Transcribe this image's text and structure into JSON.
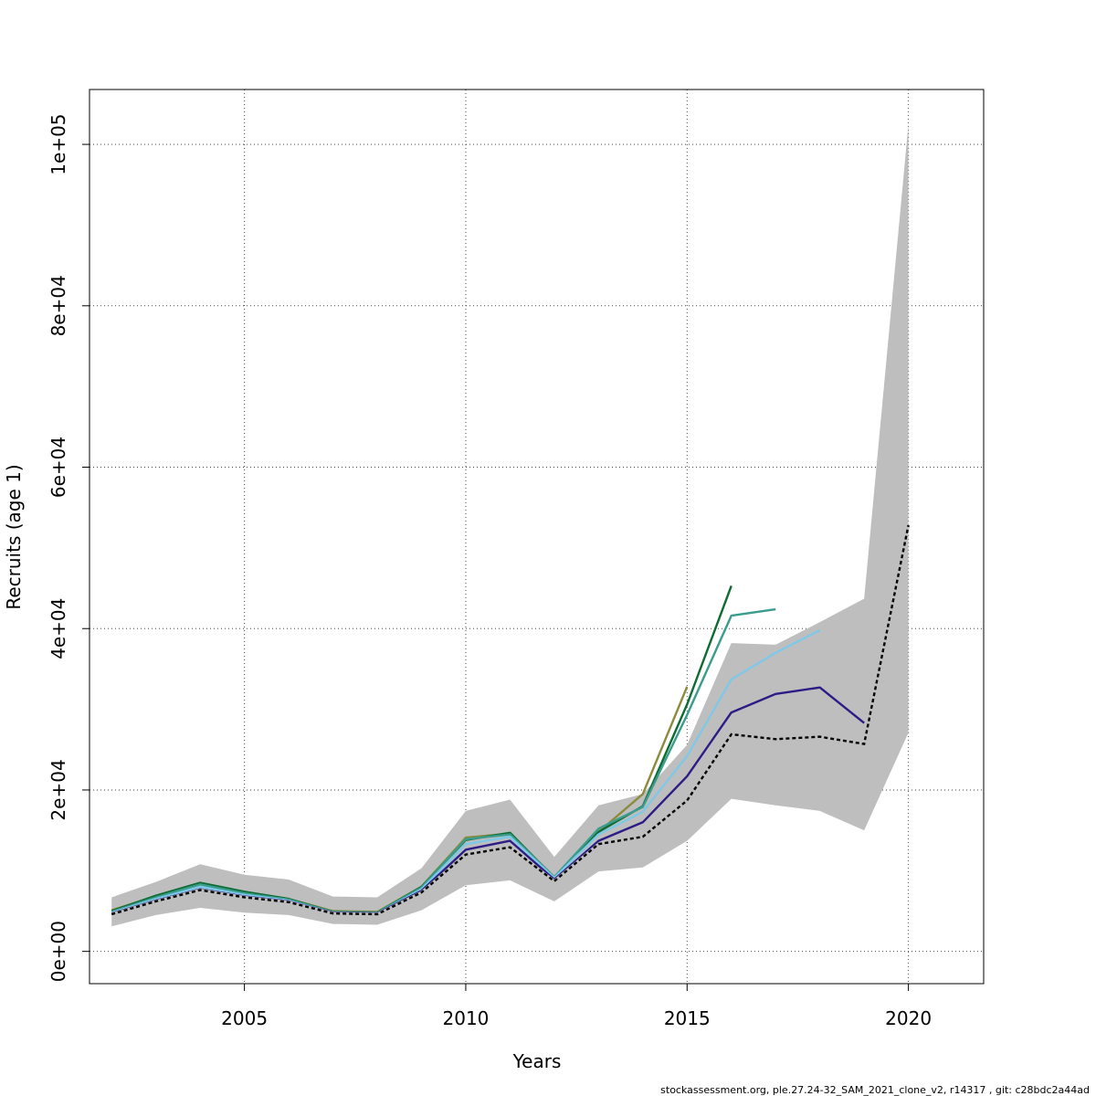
{
  "chart_data": {
    "type": "line",
    "title": "",
    "xlabel": "Years",
    "ylabel": "Recruits (age 1)",
    "xlim": [
      2001.5,
      2021.7
    ],
    "ylim": [
      -4000,
      106800
    ],
    "x_ticks": [
      {
        "value": 2005,
        "label": "2005"
      },
      {
        "value": 2010,
        "label": "2010"
      },
      {
        "value": 2015,
        "label": "2015"
      },
      {
        "value": 2020,
        "label": "2020"
      }
    ],
    "y_ticks": [
      {
        "value": 0,
        "label": "0e+00"
      },
      {
        "value": 20000,
        "label": "2e+04"
      },
      {
        "value": 40000,
        "label": "4e+04"
      },
      {
        "value": 60000,
        "label": "6e+04"
      },
      {
        "value": 80000,
        "label": "8e+04"
      },
      {
        "value": 100000,
        "label": "1e+05"
      }
    ],
    "grid": true,
    "confidence_band": {
      "color": "#bebebe",
      "x": [
        2002,
        2003,
        2004,
        2005,
        2006,
        2007,
        2008,
        2009,
        2010,
        2011,
        2012,
        2013,
        2014,
        2015,
        2016,
        2017,
        2018,
        2019,
        2020
      ],
      "upper": [
        6700,
        8600,
        10800,
        9500,
        8900,
        6800,
        6700,
        10300,
        17400,
        18800,
        11700,
        18100,
        19500,
        25600,
        38200,
        38000,
        40800,
        43700,
        102500
      ],
      "lower": [
        3100,
        4500,
        5400,
        4800,
        4500,
        3400,
        3300,
        5100,
        8200,
        8800,
        6200,
        9900,
        10400,
        13700,
        18900,
        18100,
        17400,
        15000,
        27100
      ]
    },
    "series": [
      {
        "color": "#8b8b3c",
        "dashed": false,
        "x": [
          2002,
          2003,
          2004,
          2005,
          2006,
          2007,
          2008,
          2009,
          2010,
          2011,
          2012,
          2013,
          2014,
          2015
        ],
        "values": [
          5100,
          6800,
          8400,
          7300,
          6500,
          5000,
          4900,
          8000,
          14100,
          14600,
          9200,
          14800,
          19500,
          32800
        ]
      },
      {
        "color": "#0d6b33",
        "dashed": false,
        "x": [
          2002,
          2003,
          2004,
          2005,
          2006,
          2007,
          2008,
          2009,
          2010,
          2011,
          2012,
          2013,
          2014,
          2015,
          2016
        ],
        "values": [
          5000,
          6900,
          8500,
          7400,
          6500,
          4900,
          4800,
          8000,
          13800,
          14700,
          9100,
          14800,
          18000,
          30600,
          45300
        ]
      },
      {
        "color": "#3a9c8c",
        "dashed": false,
        "x": [
          2002,
          2003,
          2004,
          2005,
          2006,
          2007,
          2008,
          2009,
          2010,
          2011,
          2012,
          2013,
          2014,
          2015,
          2016,
          2017
        ],
        "values": [
          4900,
          6700,
          8300,
          7200,
          6400,
          4900,
          4800,
          7900,
          13900,
          14500,
          9200,
          15200,
          17900,
          29300,
          41600,
          42400
        ]
      },
      {
        "color": "#7fc8e8",
        "dashed": false,
        "x": [
          2002,
          2003,
          2004,
          2005,
          2006,
          2007,
          2008,
          2009,
          2010,
          2011,
          2012,
          2013,
          2014,
          2015,
          2016,
          2017,
          2018
        ],
        "values": [
          4800,
          6500,
          8000,
          7000,
          6300,
          4800,
          4700,
          7700,
          13300,
          14200,
          9100,
          14500,
          17300,
          24200,
          33700,
          37000,
          39800
        ]
      },
      {
        "color": "#2c1c85",
        "dashed": false,
        "x": [
          2002,
          2003,
          2004,
          2005,
          2006,
          2007,
          2008,
          2009,
          2010,
          2011,
          2012,
          2013,
          2014,
          2015,
          2016,
          2017,
          2018,
          2019
        ],
        "values": [
          4700,
          6300,
          7700,
          6800,
          6200,
          4800,
          4700,
          7500,
          12600,
          13700,
          8900,
          13700,
          16000,
          21700,
          29600,
          31900,
          32700,
          28300
        ]
      },
      {
        "color": "#000000",
        "dashed": true,
        "x": [
          2002,
          2003,
          2004,
          2005,
          2006,
          2007,
          2008,
          2009,
          2010,
          2011,
          2012,
          2013,
          2014,
          2015,
          2016,
          2017,
          2018,
          2019,
          2020
        ],
        "values": [
          4600,
          6200,
          7600,
          6700,
          6100,
          4700,
          4600,
          7300,
          12000,
          12900,
          8700,
          13300,
          14200,
          18700,
          26900,
          26300,
          26600,
          25700,
          52800
        ]
      }
    ]
  },
  "footer": {
    "text": "stockassessment.org, ple.27.24-32_SAM_2021_clone_v2, r14317 , git: c28bdc2a44ad"
  }
}
